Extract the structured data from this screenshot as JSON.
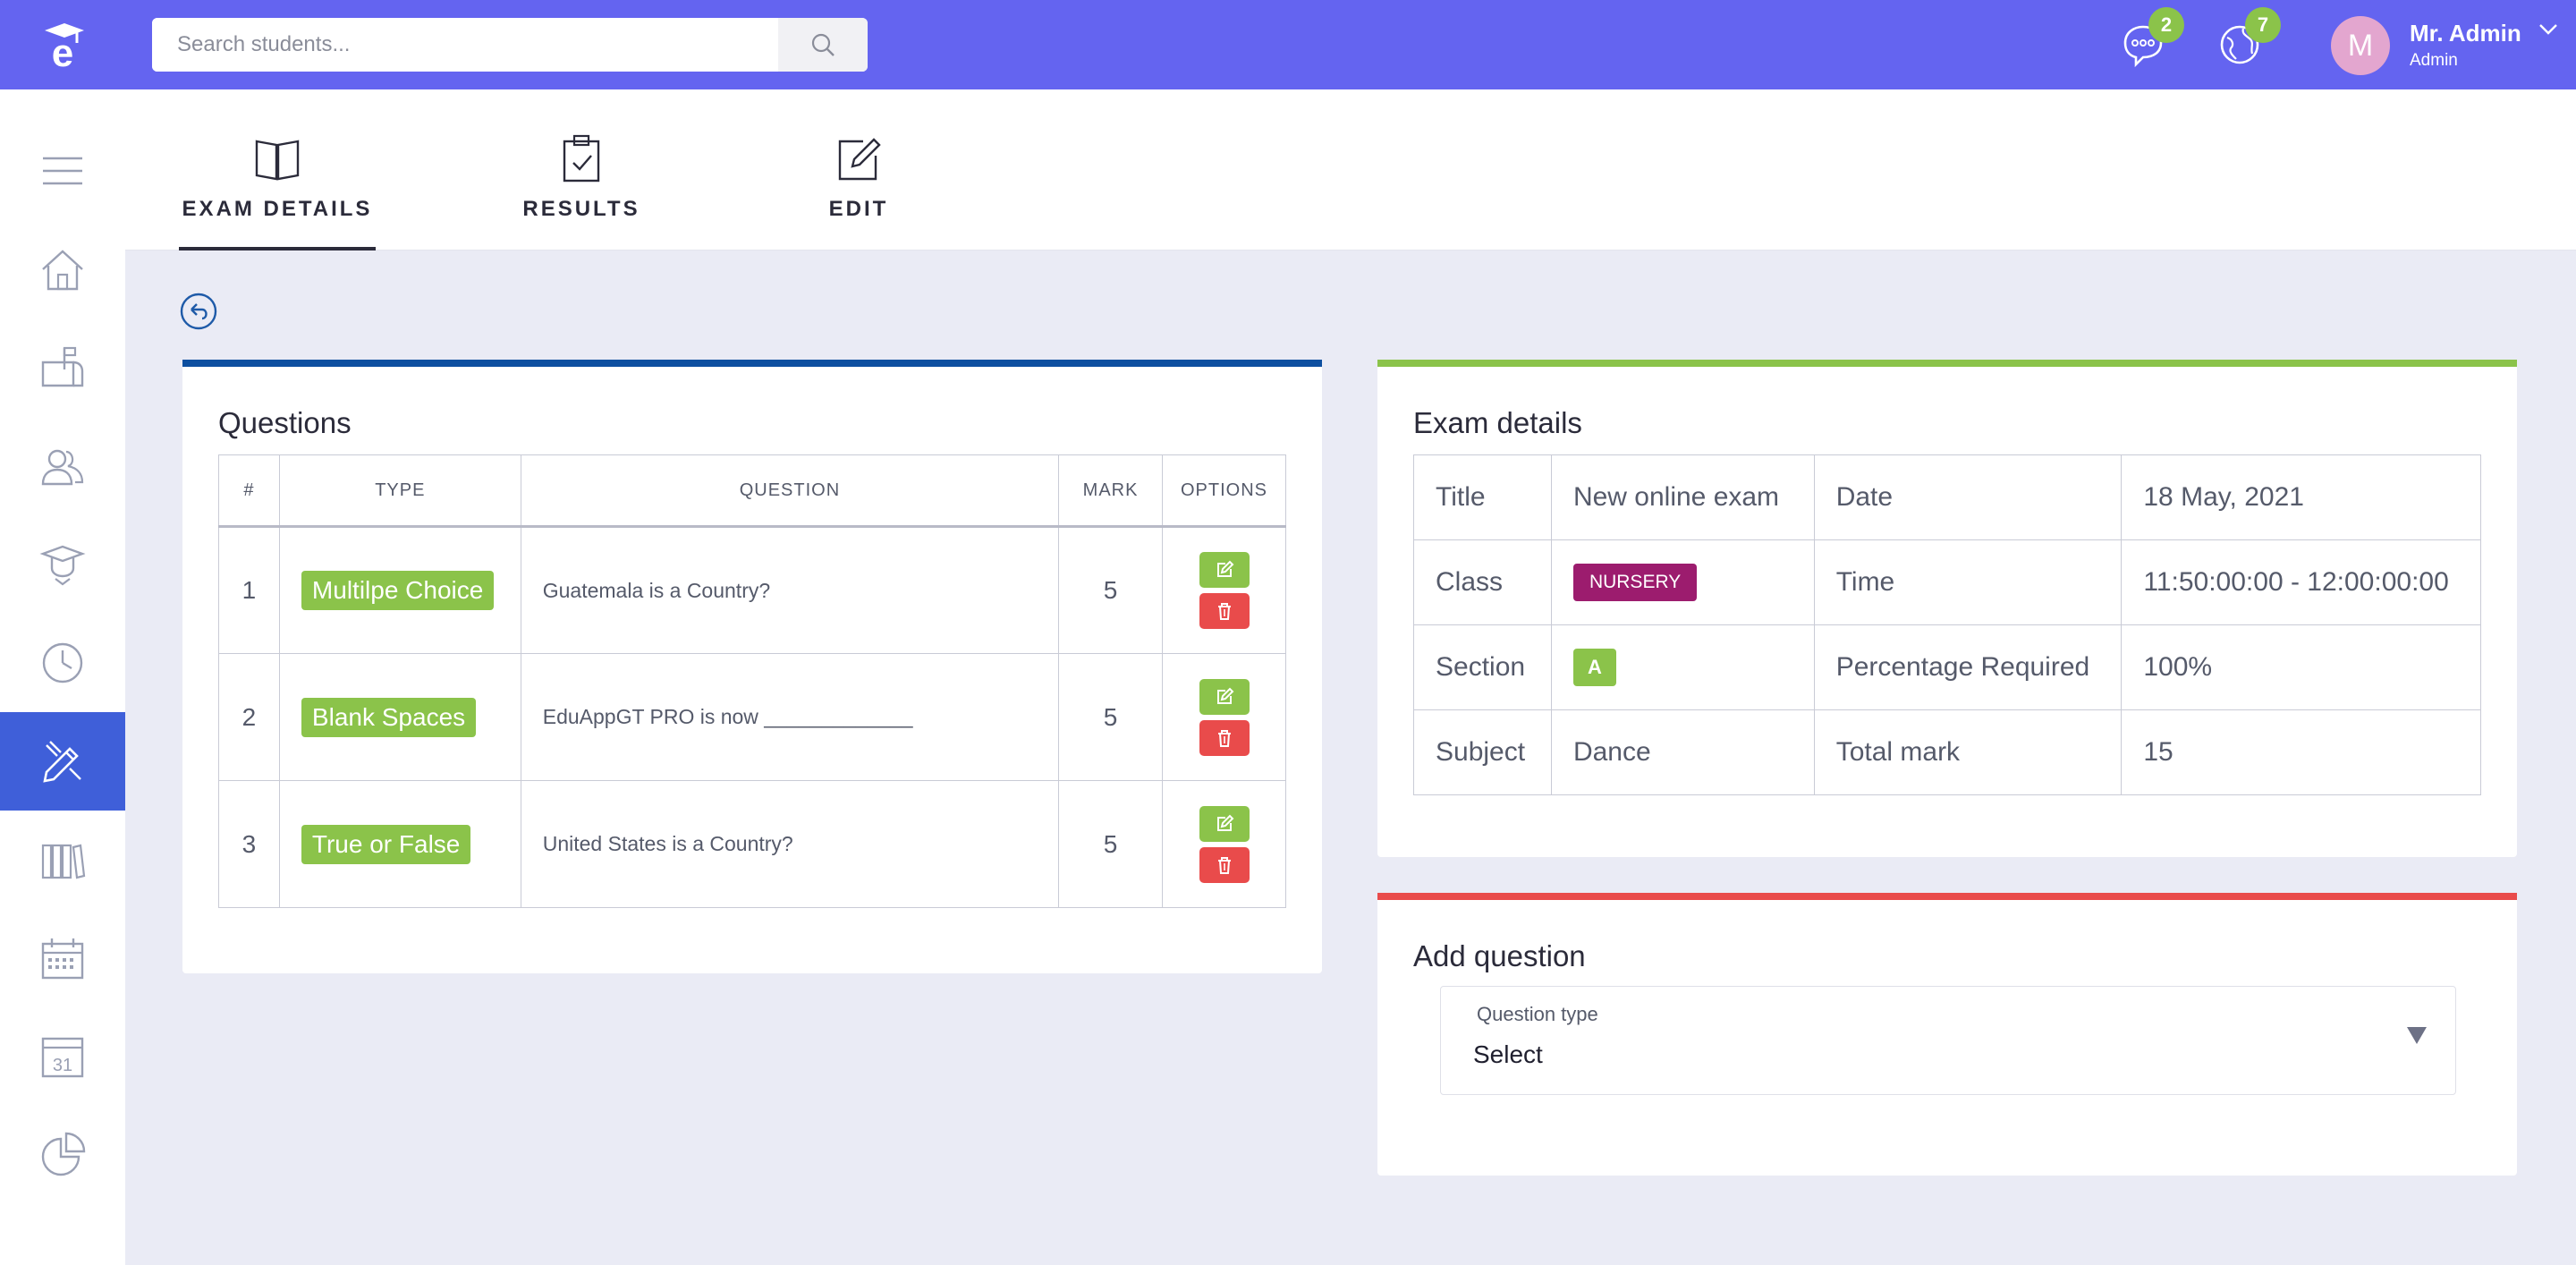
{
  "search": {
    "placeholder": "Search students..."
  },
  "header": {
    "messages_badge": "2",
    "notifications_badge": "7",
    "avatar_initial": "M",
    "user_name": "Mr. Admin",
    "user_role": "Admin"
  },
  "sidebar": {
    "items": [
      {
        "icon": "menu-icon"
      },
      {
        "icon": "home-icon"
      },
      {
        "icon": "mailbox-icon"
      },
      {
        "icon": "users-icon"
      },
      {
        "icon": "graduate-icon"
      },
      {
        "icon": "clock-icon"
      },
      {
        "icon": "exam-pencil-icon",
        "active": true
      },
      {
        "icon": "library-icon"
      },
      {
        "icon": "calendar-grid-icon"
      },
      {
        "icon": "calendar-31-icon",
        "text": "31"
      },
      {
        "icon": "pie-chart-icon"
      }
    ]
  },
  "tabs": [
    {
      "label": "EXAM DETAILS",
      "icon": "book-icon",
      "active": true
    },
    {
      "label": "RESULTS",
      "icon": "clipboard-check-icon"
    },
    {
      "label": "EDIT",
      "icon": "edit-icon"
    }
  ],
  "questions": {
    "title": "Questions",
    "accent": "#0d4fa0",
    "columns": [
      "#",
      "TYPE",
      "QUESTION",
      "MARK",
      "OPTIONS"
    ],
    "rows": [
      {
        "num": "1",
        "type": "Multilpe Choice",
        "question": "Guatemala is a Country?",
        "mark": "5"
      },
      {
        "num": "2",
        "type": "Blank Spaces",
        "question": "EduAppGT PRO is now _____________",
        "mark": "5"
      },
      {
        "num": "3",
        "type": "True or False",
        "question": "United States is a Country?",
        "mark": "5"
      }
    ]
  },
  "exam_details": {
    "title": "Exam details",
    "accent": "#8bc34a",
    "rows": [
      {
        "label1": "Title",
        "value1": "New online exam",
        "label2": "Date",
        "value2": "18 May, 2021"
      },
      {
        "label1": "Class",
        "value1": "NURSERY",
        "label2": "Time",
        "value2": "11:50:00:00 - 12:00:00:00"
      },
      {
        "label1": "Section",
        "value1": "A",
        "label2": "Percentage Required",
        "value2": "100%"
      },
      {
        "label1": "Subject",
        "value1": "Dance",
        "label2": "Total mark",
        "value2": "15"
      }
    ]
  },
  "add_question": {
    "title": "Add question",
    "accent": "#e94b4b",
    "field_label": "Question type",
    "selected": "Select"
  }
}
